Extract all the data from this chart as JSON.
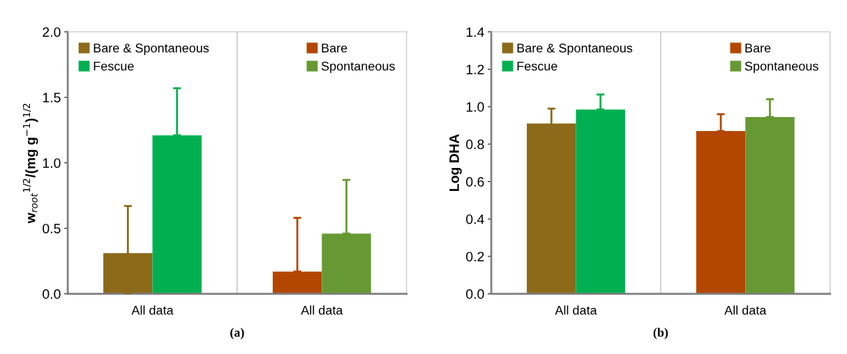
{
  "chart_data": [
    {
      "type": "bar",
      "categories": [
        "All data",
        "All data"
      ],
      "ylabel": "w$_{root}$$^{1/2}$/(mg g$^{−1}$)$^{1/2}$",
      "ylim": [
        0,
        2.0
      ],
      "yticks": [
        {
          "value": 0,
          "label": "0.0"
        },
        {
          "value": 0.5,
          "label": "0.5"
        },
        {
          "value": 1.0,
          "label": "1.0"
        },
        {
          "value": 1.5,
          "label": "1.5"
        },
        {
          "value": 2.0,
          "label": "2.0"
        }
      ],
      "grid": "x",
      "legend": "top",
      "annotations": [
        "(a)"
      ],
      "series": [
        {
          "name": "Bare & Spontaneous",
          "color": "#8c6a1a",
          "values": [
            0.31,
            null
          ],
          "errors": [
            [
              0,
              0.67
            ],
            null
          ]
        },
        {
          "name": "Fescue",
          "color": "#00b050",
          "values": [
            1.21,
            null
          ],
          "errors": [
            [
              1.21,
              1.57
            ],
            null
          ]
        },
        {
          "name": "Bare",
          "color": "#b34700",
          "values": [
            null,
            0.17
          ],
          "errors": [
            null,
            [
              0.17,
              0.58
            ]
          ]
        },
        {
          "name": "Spontaneous",
          "color": "#669933",
          "values": [
            null,
            0.46
          ],
          "errors": [
            null,
            [
              0.46,
              0.87
            ]
          ]
        }
      ]
    },
    {
      "type": "bar",
      "categories": [
        "All data",
        "All data"
      ],
      "ylabel": "Log DHA",
      "ylim": [
        0,
        1.4
      ],
      "yticks": [
        {
          "value": 0,
          "label": "0.0"
        },
        {
          "value": 0.2,
          "label": "0.2"
        },
        {
          "value": 0.4,
          "label": "0.4"
        },
        {
          "value": 0.6,
          "label": "0.6"
        },
        {
          "value": 0.8,
          "label": "0.8"
        },
        {
          "value": 1.0,
          "label": "1.0"
        },
        {
          "value": 1.2,
          "label": "1.2"
        },
        {
          "value": 1.4,
          "label": "1.4"
        }
      ],
      "grid": "x",
      "legend": "top",
      "annotations": [
        "(b)"
      ],
      "series": [
        {
          "name": "Bare & Spontaneous",
          "color": "#8c6a1a",
          "values": [
            0.91,
            null
          ],
          "errors": [
            0.08,
            null
          ]
        },
        {
          "name": "Fescue",
          "color": "#00b050",
          "values": [
            0.985,
            null
          ],
          "errors": [
            [
              0.985,
              1.065
            ],
            null
          ]
        },
        {
          "name": "Bare",
          "color": "#b34700",
          "values": [
            null,
            0.87
          ],
          "errors": [
            null,
            [
              0.87,
              0.96
            ]
          ]
        },
        {
          "name": "Spontaneous",
          "color": "#669933",
          "values": [
            null,
            0.945
          ],
          "errors": [
            null,
            [
              0.945,
              1.04
            ]
          ]
        }
      ]
    }
  ]
}
